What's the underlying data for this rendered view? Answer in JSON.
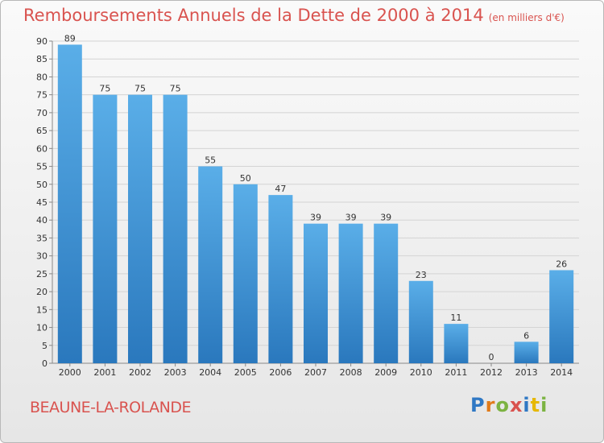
{
  "header": {
    "title": "Remboursements Annuels de la Dette de 2000 à 2014",
    "subtitle": "(en milliers d'€)"
  },
  "footer": {
    "city": "BEAUNE-LA-ROLANDE",
    "logo": "Proxiti"
  },
  "colors": {
    "title": "#d9534f",
    "bar_light": "#5aaee8",
    "bar_dark": "#2a78bd"
  },
  "chart_data": {
    "type": "bar",
    "categories": [
      "2000",
      "2001",
      "2002",
      "2003",
      "2004",
      "2005",
      "2006",
      "2007",
      "2008",
      "2009",
      "2010",
      "2011",
      "2012",
      "2013",
      "2014"
    ],
    "values": [
      89,
      75,
      75,
      75,
      55,
      50,
      47,
      39,
      39,
      39,
      23,
      11,
      0,
      6,
      26
    ],
    "title": "Remboursements Annuels de la Dette de 2000 à 2014",
    "subtitle": "(en milliers d'€)",
    "xlabel": "",
    "ylabel": "",
    "ylim": [
      0,
      90
    ],
    "yticks": [
      0,
      5,
      10,
      15,
      20,
      25,
      30,
      35,
      40,
      45,
      50,
      55,
      60,
      65,
      70,
      75,
      80,
      85,
      90
    ],
    "grid": true,
    "legend": "none"
  }
}
